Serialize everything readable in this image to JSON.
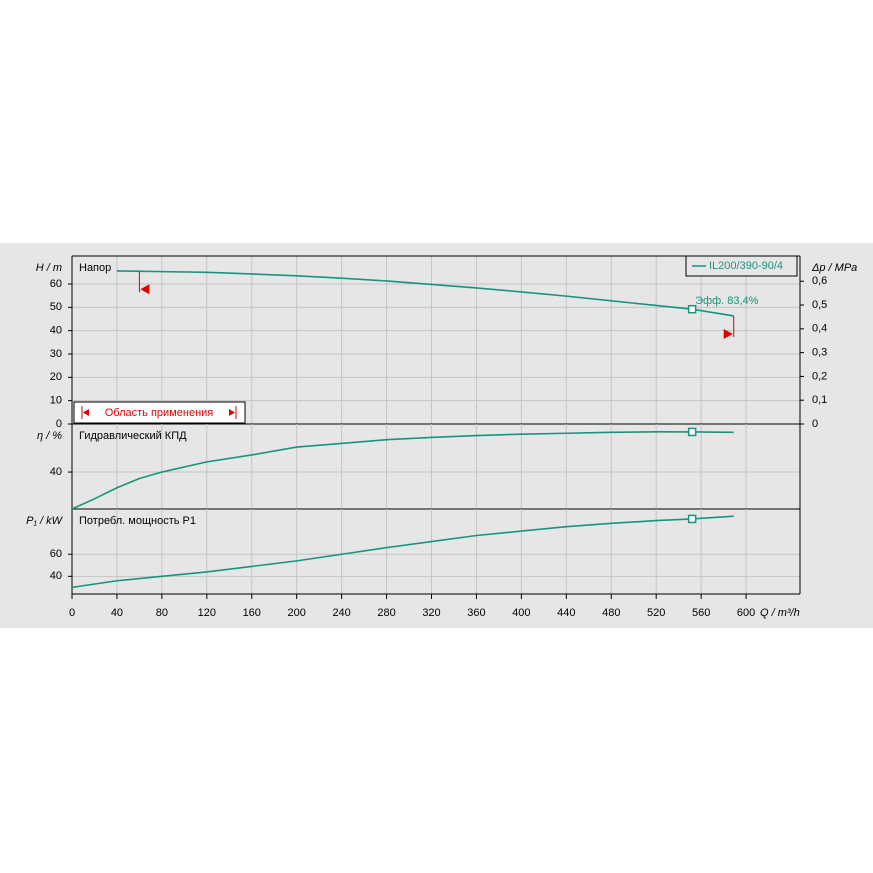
{
  "chart_data": [
    {
      "type": "line",
      "title": "Напор",
      "ylabel": "H / m",
      "y2label": "Δp / MPa",
      "xlim": [
        0,
        648
      ],
      "ylim": [
        0,
        72
      ],
      "yticks": [
        0,
        10,
        20,
        30,
        40,
        50,
        60
      ],
      "y2lim": [
        0,
        0.706
      ],
      "y2ticks": [
        0,
        {
          "value": 0.1,
          "label": "0,1"
        },
        {
          "value": 0.2,
          "label": "0,2"
        },
        {
          "value": 0.3,
          "label": "0,3"
        },
        {
          "value": 0.4,
          "label": "0,4"
        },
        {
          "value": 0.5,
          "label": "0,5"
        },
        {
          "value": 0.6,
          "label": "0,6"
        }
      ],
      "grid": true,
      "legend": "top-right",
      "series": [
        {
          "name": "IL200/390-90/4",
          "color": "#17957c",
          "x": [
            40,
            80,
            120,
            160,
            200,
            240,
            280,
            320,
            360,
            400,
            440,
            480,
            520,
            552,
            589
          ],
          "values": [
            65.6,
            65.3,
            65,
            64.3,
            63.5,
            62.5,
            61.3,
            59.8,
            58.3,
            56.6,
            54.8,
            52.8,
            50.8,
            49.2,
            46.3
          ]
        }
      ],
      "marker_x": 552,
      "annotation": "Эфф.  83,4%",
      "application_range": [
        60,
        589
      ],
      "application_label": "Область применения",
      "range_color": "#e00000"
    },
    {
      "type": "line",
      "title": "Гидравлический КПД",
      "ylabel": "η / %",
      "xlim": [
        0,
        648
      ],
      "ylim": [
        0,
        92
      ],
      "yticks": [
        40
      ],
      "grid": true,
      "series": [
        {
          "color": "#17957c",
          "x": [
            0,
            20,
            40,
            60,
            80,
            120,
            160,
            200,
            240,
            280,
            320,
            360,
            400,
            440,
            480,
            520,
            552,
            589
          ],
          "values": [
            0,
            11,
            23,
            33,
            40,
            51,
            58.5,
            67,
            71,
            75,
            77.5,
            79.5,
            81,
            82,
            83,
            83.5,
            83.4,
            83
          ]
        }
      ],
      "marker_x": 552
    },
    {
      "type": "line",
      "title": "Потребл. мощность P1",
      "ylabel": "P₁ / kW",
      "xlabel": "Q / m³/h",
      "xlim": [
        0,
        648
      ],
      "ylim": [
        24,
        101
      ],
      "yticks": [
        40,
        60
      ],
      "grid": true,
      "xticks": [
        0,
        40,
        80,
        120,
        160,
        200,
        240,
        280,
        320,
        360,
        400,
        440,
        480,
        520,
        560,
        600
      ],
      "series": [
        {
          "color": "#17957c",
          "x": [
            0,
            40,
            80,
            120,
            160,
            200,
            240,
            280,
            320,
            360,
            400,
            440,
            480,
            520,
            552,
            589
          ],
          "values": [
            30,
            36,
            40,
            44,
            49,
            54,
            60,
            66,
            71.5,
            77,
            81,
            85,
            88,
            90.5,
            92,
            94.5
          ]
        }
      ],
      "marker_x": 552
    }
  ]
}
